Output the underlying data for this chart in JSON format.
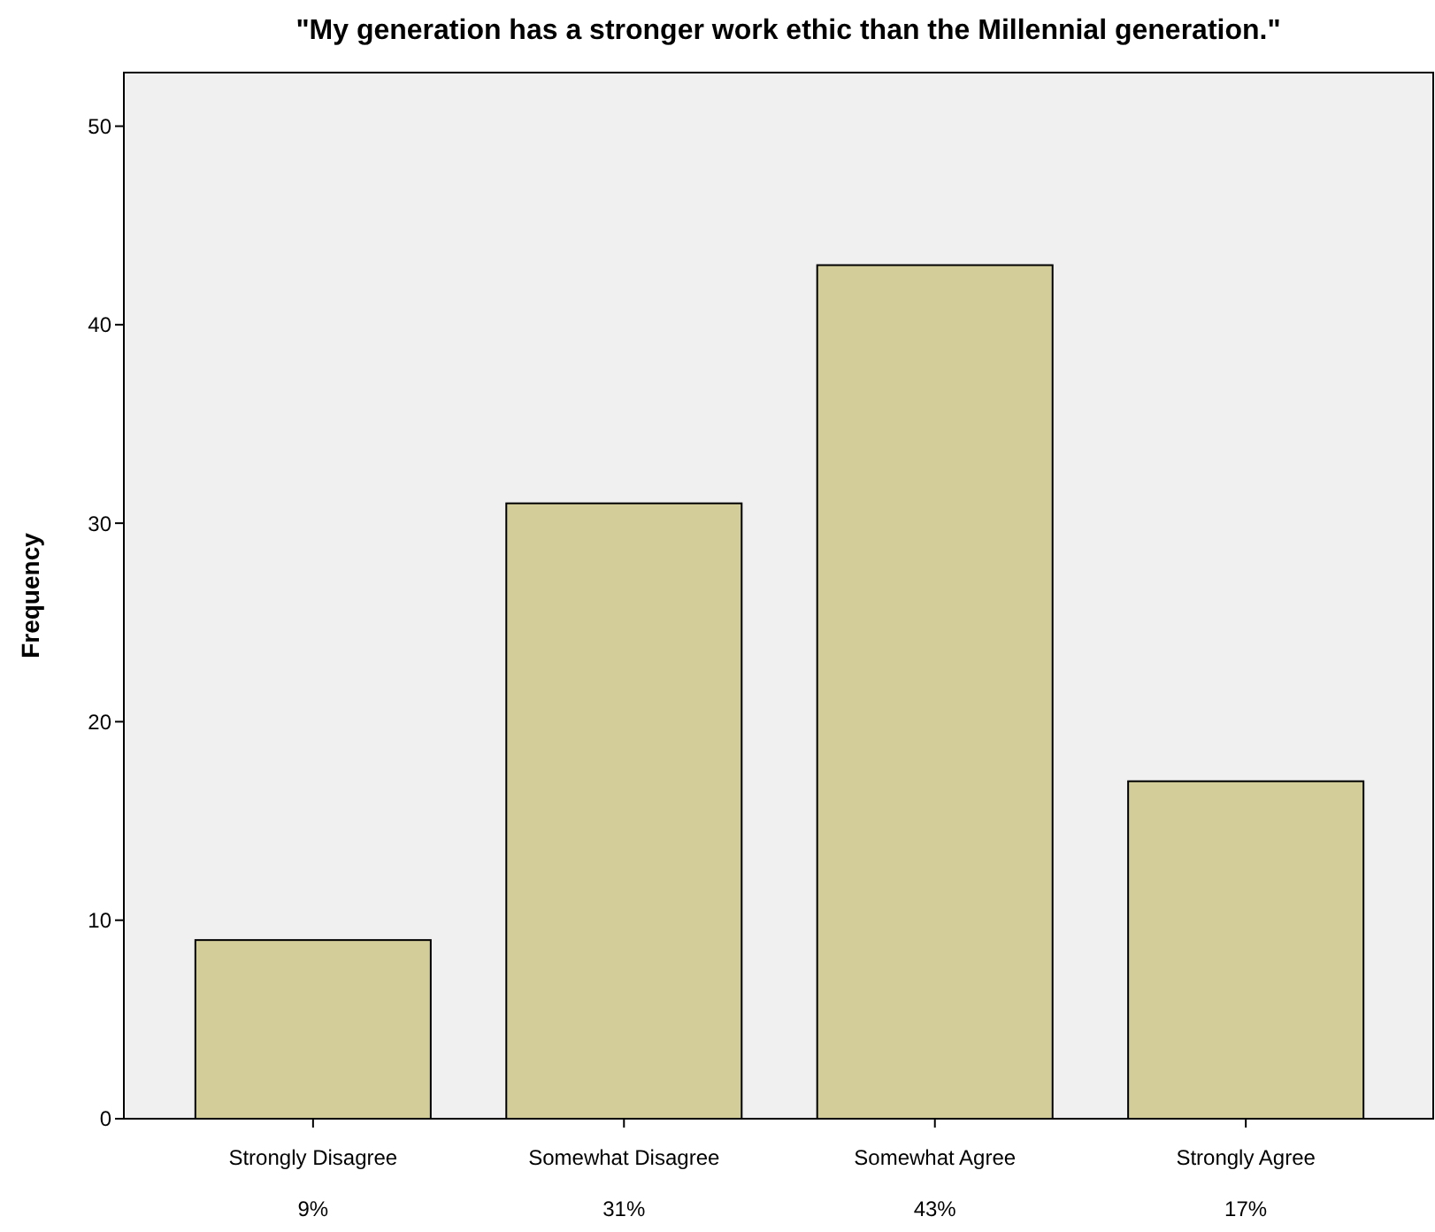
{
  "chart_data": {
    "type": "bar",
    "title": "\"My generation has a stronger work ethic than the Millennial generation.\"",
    "ylabel": "Frequency",
    "categories": [
      "Strongly Disagree",
      "Somewhat Disagree",
      "Somewhat Agree",
      "Strongly Agree"
    ],
    "values": [
      9,
      31,
      43,
      17
    ],
    "value_labels": [
      "9%",
      "31%",
      "43%",
      "17%"
    ],
    "color": "#d3cd99",
    "ylim": [
      0,
      52.7
    ],
    "yticks": [
      0,
      10,
      20,
      30,
      40,
      50
    ],
    "grid": false
  }
}
